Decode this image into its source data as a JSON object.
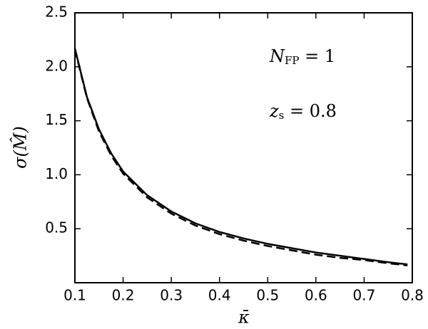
{
  "chart_data": {
    "type": "line",
    "x_label": "κ̄",
    "y_label": "σ(M̂)",
    "annotations": [
      {
        "main": "N",
        "sub": "FP",
        "rest": " = 1"
      },
      {
        "main": "z",
        "sub": "s",
        "rest": " = 0.8"
      }
    ],
    "x": [
      0.1,
      0.125,
      0.15,
      0.175,
      0.2,
      0.25,
      0.3,
      0.35,
      0.4,
      0.45,
      0.5,
      0.55,
      0.6,
      0.65,
      0.7,
      0.75,
      0.79
    ],
    "series": [
      {
        "color": "#000000",
        "dash": "solid",
        "values": [
          2.17,
          1.72,
          1.42,
          1.2,
          1.03,
          0.81,
          0.66,
          0.55,
          0.47,
          0.41,
          0.36,
          0.32,
          0.28,
          0.25,
          0.22,
          0.19,
          0.17
        ]
      },
      {
        "color": "#000000",
        "dash": "dashed",
        "values": [
          2.16,
          1.71,
          1.4,
          1.18,
          1.01,
          0.79,
          0.64,
          0.53,
          0.45,
          0.39,
          0.34,
          0.3,
          0.26,
          0.23,
          0.21,
          0.18,
          0.16
        ]
      }
    ],
    "xlim": [
      0.1,
      0.8
    ],
    "ylim": [
      0,
      2.5
    ],
    "xticks": [
      0.1,
      0.2,
      0.3,
      0.4,
      0.5,
      0.6,
      0.7,
      0.8
    ],
    "yticks": [
      0.5,
      {
        "value": 1,
        "label": "1.0"
      },
      1.5,
      {
        "value": 2,
        "label": "2.0"
      },
      2.5
    ]
  }
}
